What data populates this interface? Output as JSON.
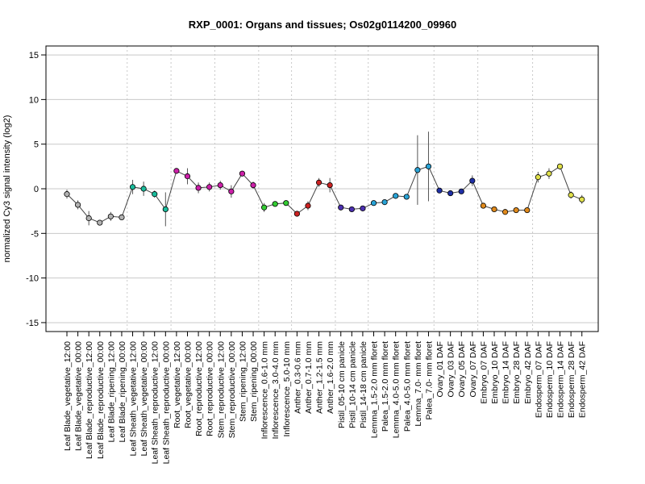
{
  "chart_data": {
    "type": "line",
    "title": "RXP_0001: Organs and tissues; Os02g0114200_09960",
    "xlabel": "",
    "ylabel": "normalized Cy3 signal intensity (log2)",
    "ylim": [
      -16,
      16
    ],
    "yticks": [
      -15,
      -10,
      -5,
      0,
      5,
      10,
      15
    ],
    "grid": {
      "horizontal": true,
      "vertical_dotted_group_separators": true
    },
    "categories": [
      "Leaf Blade_vegetative_12:00",
      "Leaf Blade_vegetative_00:00",
      "Leaf Blade_reproductive_12:00",
      "Leaf Blade_reproductive_00:00",
      "Leaf Blade_ripening_12:00",
      "Leaf Blade_ripening_00:00",
      "Leaf Sheath_vegetative_12:00",
      "Leaf Sheath_vegetative_00:00",
      "Leaf Sheath_reproductive_12:00",
      "Leaf Sheath_reproductive_00:00",
      "Root_vegetative_12:00",
      "Root_vegetative_00:00",
      "Root_reproductive_12:00",
      "Root_reproductive_00:00",
      "Stem_reproductive_12:00",
      "Stem_reproductive_00:00",
      "Stem_ripening_12:00",
      "Stem_ripening_00:00",
      "Inflorescence_0.6-1.0 mm",
      "Inflorescence_3.0-4.0 mm",
      "Inflorescence_5.0-10 mm",
      "Anther_0.3-0.6 mm",
      "Anther_0.7-1.0 mm",
      "Anther_1.2-1.5 mm",
      "Anther_1.6-2.0 mm",
      "Pistil_05-10 cm panicle",
      "Pistil_10-14 cm panicle",
      "Pistil_14-18 cm panicle",
      "Lemma_1.5-2.0 mm floret",
      "Palea_1.5-2.0 mm floret",
      "Lemma_4.0-5.0 mm floret",
      "Palea_4.0-5.0 mm floret",
      "Lemma_7.0- mm floret",
      "Palea_7.0- mm floret",
      "Ovary_01 DAF",
      "Ovary_03 DAF",
      "Ovary_05 DAF",
      "Ovary_07 DAF",
      "Embryo_07 DAF",
      "Embryo_10 DAF",
      "Embryo_14 DAF",
      "Embryo_28 DAF",
      "Embryo_42 DAF",
      "Endosperm_07 DAF",
      "Endosperm_10 DAF",
      "Endosperm_14 DAF",
      "Endosperm_28 DAF",
      "Endosperm_42 DAF"
    ],
    "values": [
      -0.6,
      -1.8,
      -3.3,
      -3.8,
      -3.1,
      -3.2,
      0.2,
      0.0,
      -0.6,
      -2.3,
      2.0,
      1.4,
      0.1,
      0.2,
      0.4,
      -0.3,
      1.7,
      0.4,
      -2.1,
      -1.7,
      -1.6,
      -2.8,
      -1.9,
      0.7,
      0.4,
      -2.1,
      -2.3,
      -2.2,
      -1.6,
      -1.5,
      -0.8,
      -0.9,
      2.1,
      2.5,
      -0.2,
      -0.5,
      -0.3,
      0.9,
      -1.9,
      -2.3,
      -2.6,
      -2.4,
      -2.4,
      1.3,
      1.7,
      2.5,
      -0.7,
      -1.2
    ],
    "error": [
      0.5,
      0.5,
      0.8,
      0.2,
      0.5,
      0.3,
      0.8,
      0.8,
      0.4,
      1.9,
      0.2,
      0.9,
      0.6,
      0.5,
      0.5,
      0.7,
      0.3,
      0.4,
      0.5,
      0.3,
      0.3,
      0.3,
      0.5,
      0.5,
      0.8,
      0.2,
      0.2,
      0.2,
      0.2,
      0.2,
      0.2,
      0.2,
      3.9,
      3.9,
      0.2,
      0.2,
      0.2,
      0.6,
      0.2,
      0.2,
      0.2,
      0.2,
      0.2,
      0.6,
      0.6,
      0.3,
      0.4,
      0.5
    ],
    "groups": [
      {
        "start": 0,
        "end": 5,
        "color": "#b2b2b2"
      },
      {
        "start": 6,
        "end": 9,
        "color": "#1abc9c"
      },
      {
        "start": 10,
        "end": 13,
        "color": "#cc1fa8"
      },
      {
        "start": 14,
        "end": 17,
        "color": "#cc1fa8"
      },
      {
        "start": 18,
        "end": 20,
        "color": "#33cc33"
      },
      {
        "start": 21,
        "end": 24,
        "color": "#cc2222"
      },
      {
        "start": 25,
        "end": 27,
        "color": "#4b2fb0"
      },
      {
        "start": 28,
        "end": 33,
        "color": "#29a3d6"
      },
      {
        "start": 34,
        "end": 37,
        "color": "#1f2fa6"
      },
      {
        "start": 38,
        "end": 42,
        "color": "#e08a1c"
      },
      {
        "start": 43,
        "end": 47,
        "color": "#e0e04a"
      }
    ]
  }
}
